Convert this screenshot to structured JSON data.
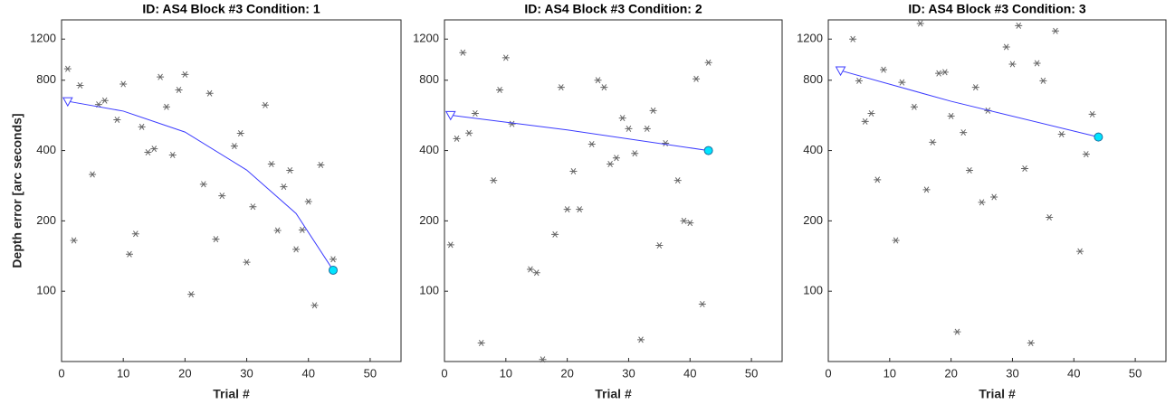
{
  "chart_data": [
    {
      "type": "scatter",
      "title": "ID: AS4 Block #3 Condition: 1",
      "x_label": "Trial #",
      "y_label": "Depth error [arc seconds]",
      "xlim": [
        0,
        55
      ],
      "xticks": [
        0,
        10,
        20,
        30,
        40,
        50
      ],
      "ylim": [
        50,
        1450
      ],
      "yticks": [
        100,
        200,
        400,
        800,
        1200
      ],
      "log_y": true,
      "points": {
        "color": "#666666",
        "x": [
          1,
          2,
          3,
          5,
          6,
          7,
          9,
          10,
          11,
          12,
          13,
          14,
          15,
          16,
          17,
          18,
          19,
          20,
          21,
          23,
          24,
          25,
          26,
          28,
          29,
          30,
          31,
          33,
          34,
          35,
          36,
          37,
          38,
          39,
          40,
          41,
          42,
          44
        ],
        "values": [
          895,
          165,
          760,
          316,
          630,
          655,
          542,
          770,
          144,
          176,
          505,
          393,
          407,
          826,
          615,
          383,
          727,
          847,
          97,
          287,
          703,
          167,
          256,
          418,
          474,
          133,
          230,
          626,
          350,
          182,
          280,
          329,
          151,
          183,
          242,
          87,
          347,
          137
        ]
      },
      "fit": {
        "color": "#3b3bff",
        "x": [
          1,
          10,
          20,
          30,
          38,
          44
        ],
        "values": [
          650,
          590,
          480,
          330,
          215,
          123
        ]
      }
    },
    {
      "type": "scatter",
      "title": "ID: AS4 Block #3 Condition: 2",
      "x_label": "Trial #",
      "xlim": [
        0,
        55
      ],
      "xticks": [
        0,
        10,
        20,
        30,
        40,
        50
      ],
      "ylim": [
        50,
        1450
      ],
      "yticks": [
        100,
        200,
        400,
        800,
        1200
      ],
      "log_y": true,
      "points": {
        "color": "#666666",
        "x": [
          1,
          2,
          3,
          4,
          5,
          6,
          8,
          9,
          10,
          11,
          14,
          15,
          16,
          18,
          19,
          20,
          21,
          22,
          24,
          25,
          26,
          27,
          28,
          29,
          30,
          31,
          32,
          33,
          34,
          35,
          36,
          38,
          39,
          40,
          41,
          42,
          43
        ],
        "values": [
          158,
          450,
          1050,
          475,
          577,
          60,
          298,
          727,
          998,
          520,
          124,
          120,
          51,
          175,
          746,
          224,
          326,
          224,
          426,
          800,
          746,
          350,
          372,
          551,
          496,
          389,
          62,
          496,
          593,
          157,
          430,
          298,
          200,
          196,
          811,
          88,
          952
        ]
      },
      "fit": {
        "color": "#3b3bff",
        "x": [
          1,
          20,
          43
        ],
        "values": [
          567,
          490,
          400
        ]
      }
    },
    {
      "type": "scatter",
      "title": "ID: AS4 Block #3 Condition: 3",
      "x_label": "Trial #",
      "xlim": [
        0,
        55
      ],
      "xticks": [
        0,
        10,
        20,
        30,
        40,
        50
      ],
      "ylim": [
        50,
        1450
      ],
      "yticks": [
        100,
        200,
        400,
        800,
        1200
      ],
      "log_y": true,
      "points": {
        "color": "#666666",
        "x": [
          4,
          5,
          6,
          7,
          8,
          9,
          11,
          12,
          14,
          15,
          16,
          17,
          18,
          19,
          20,
          21,
          22,
          23,
          24,
          25,
          26,
          27,
          29,
          30,
          31,
          32,
          33,
          34,
          35,
          36,
          37,
          38,
          41,
          42,
          43
        ],
        "values": [
          1200,
          796,
          533,
          577,
          300,
          887,
          165,
          783,
          615,
          1400,
          272,
          434,
          856,
          866,
          562,
          67,
          478,
          329,
          746,
          240,
          593,
          253,
          1110,
          937,
          1370,
          335,
          60,
          946,
          796,
          207,
          1300,
          470,
          148,
          386,
          572
        ]
      },
      "fit": {
        "color": "#3b3bff",
        "x": [
          2,
          20,
          44
        ],
        "values": [
          880,
          650,
          457
        ]
      }
    }
  ]
}
